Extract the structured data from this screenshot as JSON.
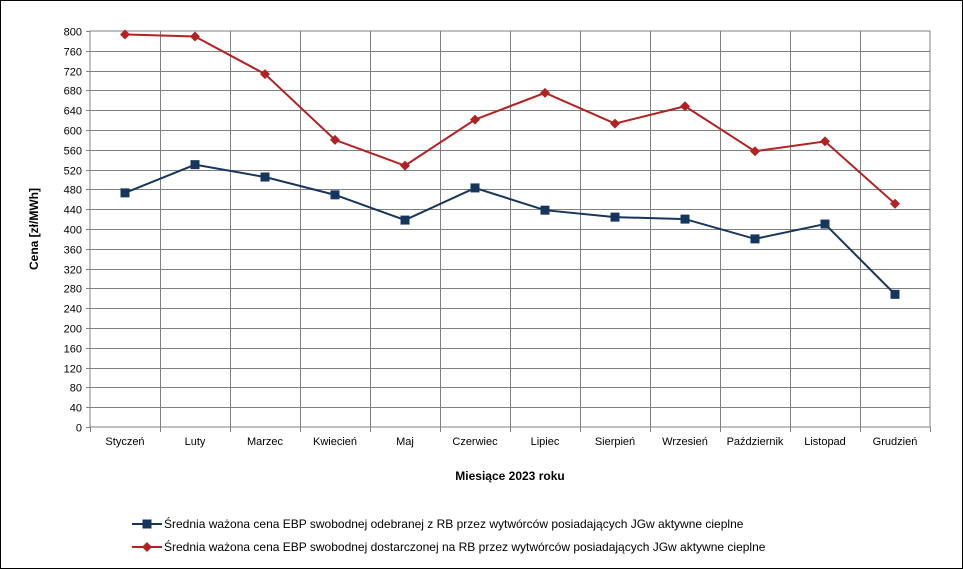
{
  "chart_data": {
    "type": "line",
    "xlabel": "Miesiące 2023  roku",
    "ylabel": "Cena [zł/MWh]",
    "ylim": [
      0,
      800
    ],
    "y_tick_step": 40,
    "grid": true,
    "legend_position": "bottom",
    "categories": [
      "Styczeń",
      "Luty",
      "Marzec",
      "Kwiecień",
      "Maj",
      "Czerwiec",
      "Lipiec",
      "Sierpień",
      "Wrzesień",
      "Październik",
      "Listopad",
      "Grudzień"
    ],
    "series": [
      {
        "name": "Średnia ważona cena EBP swobodnej odebranej z RB przez wytwórców posiadających JGw aktywne cieplne",
        "color": "#17365D",
        "marker": "square",
        "values": [
          473,
          530,
          505,
          469,
          418,
          483,
          438,
          424,
          420,
          380,
          410,
          268
        ]
      },
      {
        "name": "Średnia ważona cena EBP swobodnej dostarczonej na RB przez wytwórców posiadających JGw aktywne cieplne",
        "color": "#B22222",
        "marker": "diamond",
        "values": [
          793,
          789,
          713,
          580,
          528,
          621,
          675,
          613,
          648,
          557,
          577,
          451
        ]
      }
    ]
  }
}
